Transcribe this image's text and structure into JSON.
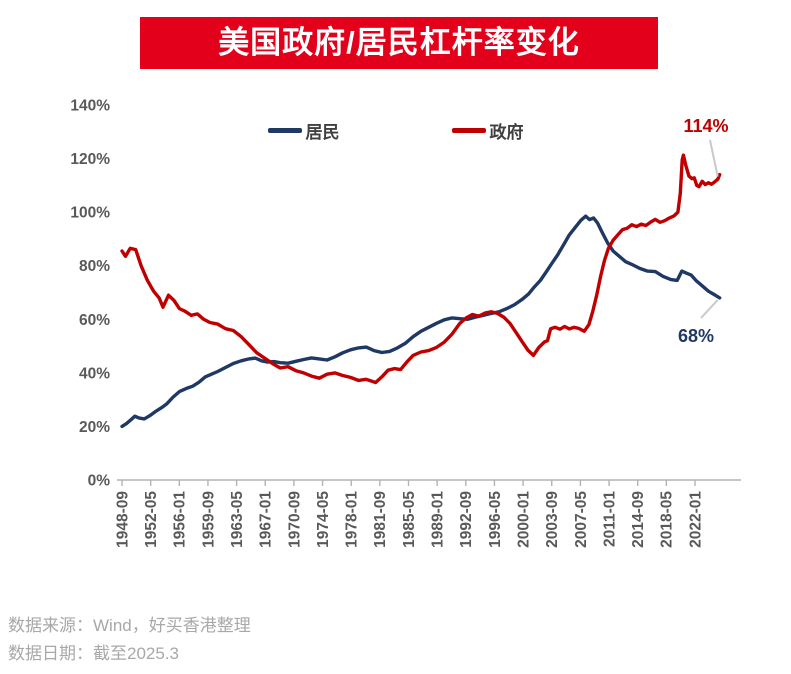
{
  "title": {
    "text": "美国政府/居民杠杆率变化"
  },
  "footer": {
    "source": "数据来源：Wind，好买香港整理",
    "date": "数据日期：截至2025.3"
  },
  "chart_data": {
    "type": "line",
    "title": "美国政府/居民杠杆率变化",
    "xlabel": "",
    "ylabel": "",
    "ylim": [
      0,
      140
    ],
    "y_ticks": [
      0,
      20,
      40,
      60,
      80,
      100,
      120,
      140
    ],
    "y_tick_suffix": "%",
    "grid": false,
    "legend_position": "top",
    "x_range_years": [
      1948.75,
      2025.25
    ],
    "x_tick_interval_months": 44,
    "x_tick_labels": [
      "1948-09",
      "1952-05",
      "1956-01",
      "1959-09",
      "1963-05",
      "1967-01",
      "1970-09",
      "1974-05",
      "1978-01",
      "1981-09",
      "1985-05",
      "1989-01",
      "1992-09",
      "1996-05",
      "2000-01",
      "2003-09",
      "2007-05",
      "2011-01",
      "2014-09",
      "2018-05",
      "2022-01"
    ],
    "series": [
      {
        "key": "household",
        "name": "居民",
        "color": "#1f3864",
        "end_label": "68%",
        "points": [
          [
            1948.75,
            20
          ],
          [
            1949.3,
            21
          ],
          [
            1949.9,
            22.5
          ],
          [
            1950.4,
            23.8
          ],
          [
            1950.9,
            23.2
          ],
          [
            1951.6,
            22.8
          ],
          [
            1952.3,
            24
          ],
          [
            1953.0,
            25.5
          ],
          [
            1953.8,
            27
          ],
          [
            1954.5,
            28.5
          ],
          [
            1955.3,
            31
          ],
          [
            1956.1,
            33
          ],
          [
            1957.0,
            34.2
          ],
          [
            1957.8,
            35
          ],
          [
            1958.6,
            36.5
          ],
          [
            1959.4,
            38.5
          ],
          [
            1960.2,
            39.5
          ],
          [
            1961.0,
            40.5
          ],
          [
            1962.0,
            42
          ],
          [
            1963.0,
            43.5
          ],
          [
            1964.0,
            44.5
          ],
          [
            1965.0,
            45.2
          ],
          [
            1965.8,
            45.5
          ],
          [
            1966.6,
            44.5
          ],
          [
            1967.4,
            44
          ],
          [
            1968.2,
            44.2
          ],
          [
            1969.0,
            43.8
          ],
          [
            1970.0,
            43.6
          ],
          [
            1971.0,
            44.3
          ],
          [
            1972.0,
            45
          ],
          [
            1973.0,
            45.6
          ],
          [
            1974.0,
            45.2
          ],
          [
            1975.0,
            44.8
          ],
          [
            1976.0,
            46
          ],
          [
            1977.0,
            47.5
          ],
          [
            1978.0,
            48.6
          ],
          [
            1979.0,
            49.3
          ],
          [
            1980.0,
            49.6
          ],
          [
            1981.0,
            48.3
          ],
          [
            1982.0,
            47.6
          ],
          [
            1983.0,
            48
          ],
          [
            1984.0,
            49.3
          ],
          [
            1985.0,
            51
          ],
          [
            1986.0,
            53.5
          ],
          [
            1987.0,
            55.5
          ],
          [
            1988.0,
            57
          ],
          [
            1989.0,
            58.5
          ],
          [
            1990.0,
            59.8
          ],
          [
            1991.0,
            60.5
          ],
          [
            1992.0,
            60.2
          ],
          [
            1993.0,
            60
          ],
          [
            1994.0,
            60.8
          ],
          [
            1995.0,
            61.5
          ],
          [
            1996.0,
            62.2
          ],
          [
            1997.0,
            62.8
          ],
          [
            1998.0,
            64
          ],
          [
            1999.0,
            65.5
          ],
          [
            2000.0,
            67.5
          ],
          [
            2000.8,
            69.5
          ],
          [
            2001.5,
            72
          ],
          [
            2002.3,
            74.5
          ],
          [
            2003.0,
            77.5
          ],
          [
            2003.8,
            81
          ],
          [
            2004.5,
            84
          ],
          [
            2005.3,
            88
          ],
          [
            2006.0,
            91.5
          ],
          [
            2006.8,
            94.5
          ],
          [
            2007.5,
            97
          ],
          [
            2008.1,
            98.5
          ],
          [
            2008.6,
            97.2
          ],
          [
            2009.1,
            97.8
          ],
          [
            2009.6,
            96
          ],
          [
            2010.2,
            92.5
          ],
          [
            2010.9,
            88.5
          ],
          [
            2011.6,
            85.5
          ],
          [
            2012.4,
            83.5
          ],
          [
            2013.2,
            81.5
          ],
          [
            2014.0,
            80.5
          ],
          [
            2015.0,
            79
          ],
          [
            2016.0,
            78
          ],
          [
            2017.0,
            77.8
          ],
          [
            2018.0,
            76
          ],
          [
            2019.0,
            74.8
          ],
          [
            2019.8,
            74.5
          ],
          [
            2020.4,
            78
          ],
          [
            2021.0,
            77.2
          ],
          [
            2021.6,
            76.5
          ],
          [
            2022.2,
            74.5
          ],
          [
            2023.0,
            72.5
          ],
          [
            2023.8,
            70.5
          ],
          [
            2024.5,
            69.3
          ],
          [
            2025.25,
            68
          ]
        ]
      },
      {
        "key": "government",
        "name": "政府",
        "color": "#c00000",
        "end_label": "114%",
        "points": [
          [
            1948.75,
            85.5
          ],
          [
            1949.2,
            83.5
          ],
          [
            1949.8,
            86.5
          ],
          [
            1950.5,
            86
          ],
          [
            1951.2,
            80
          ],
          [
            1952.0,
            74.5
          ],
          [
            1952.8,
            70.5
          ],
          [
            1953.5,
            68
          ],
          [
            1954.0,
            64.5
          ],
          [
            1954.7,
            69
          ],
          [
            1955.4,
            67
          ],
          [
            1956.1,
            64
          ],
          [
            1956.8,
            63
          ],
          [
            1957.6,
            61.5
          ],
          [
            1958.4,
            62
          ],
          [
            1959.2,
            60
          ],
          [
            1960.0,
            58.8
          ],
          [
            1961.0,
            58.2
          ],
          [
            1962.0,
            56.5
          ],
          [
            1963.0,
            55.8
          ],
          [
            1964.0,
            53.5
          ],
          [
            1965.0,
            50.5
          ],
          [
            1966.0,
            47.5
          ],
          [
            1967.0,
            45.5
          ],
          [
            1968.0,
            43.5
          ],
          [
            1969.0,
            41.8
          ],
          [
            1970.0,
            42.3
          ],
          [
            1971.0,
            40.8
          ],
          [
            1972.0,
            40
          ],
          [
            1973.0,
            38.8
          ],
          [
            1974.0,
            38
          ],
          [
            1975.0,
            39.5
          ],
          [
            1976.0,
            40
          ],
          [
            1977.0,
            39
          ],
          [
            1978.0,
            38.3
          ],
          [
            1979.0,
            37.2
          ],
          [
            1980.0,
            37.6
          ],
          [
            1981.2,
            36.4
          ],
          [
            1982.0,
            38.5
          ],
          [
            1982.8,
            41
          ],
          [
            1983.6,
            41.6
          ],
          [
            1984.4,
            41.2
          ],
          [
            1985.2,
            44
          ],
          [
            1986.0,
            46.5
          ],
          [
            1987.0,
            47.8
          ],
          [
            1988.0,
            48.3
          ],
          [
            1989.0,
            49.5
          ],
          [
            1990.0,
            51.5
          ],
          [
            1991.0,
            54.5
          ],
          [
            1992.0,
            58.5
          ],
          [
            1992.8,
            60.5
          ],
          [
            1993.6,
            61.8
          ],
          [
            1994.4,
            61.2
          ],
          [
            1995.2,
            62.3
          ],
          [
            1996.0,
            62.8
          ],
          [
            1996.8,
            62.2
          ],
          [
            1997.6,
            60.8
          ],
          [
            1998.4,
            58.5
          ],
          [
            1999.2,
            55
          ],
          [
            2000.0,
            51.5
          ],
          [
            2000.7,
            48.5
          ],
          [
            2001.4,
            46.5
          ],
          [
            2002.1,
            49.5
          ],
          [
            2002.8,
            51.5
          ],
          [
            2003.2,
            52
          ],
          [
            2003.6,
            56.5
          ],
          [
            2004.2,
            57
          ],
          [
            2004.8,
            56.3
          ],
          [
            2005.4,
            57.3
          ],
          [
            2006.0,
            56.4
          ],
          [
            2006.6,
            57
          ],
          [
            2007.2,
            56.6
          ],
          [
            2007.9,
            55.5
          ],
          [
            2008.5,
            58
          ],
          [
            2009.0,
            63
          ],
          [
            2009.5,
            69
          ],
          [
            2010.0,
            76
          ],
          [
            2010.5,
            82
          ],
          [
            2011.0,
            86.5
          ],
          [
            2011.6,
            89.5
          ],
          [
            2012.2,
            91.5
          ],
          [
            2012.8,
            93.5
          ],
          [
            2013.4,
            94
          ],
          [
            2014.0,
            95.3
          ],
          [
            2014.6,
            94.6
          ],
          [
            2015.2,
            95.5
          ],
          [
            2015.8,
            95
          ],
          [
            2016.4,
            96.3
          ],
          [
            2017.0,
            97.3
          ],
          [
            2017.6,
            96.2
          ],
          [
            2018.2,
            96.8
          ],
          [
            2018.8,
            97.8
          ],
          [
            2019.4,
            98.6
          ],
          [
            2019.9,
            100
          ],
          [
            2020.2,
            107
          ],
          [
            2020.45,
            119.5
          ],
          [
            2020.6,
            121.3
          ],
          [
            2020.9,
            117.5
          ],
          [
            2021.3,
            113.5
          ],
          [
            2021.7,
            112.5
          ],
          [
            2022.0,
            112.8
          ],
          [
            2022.3,
            110
          ],
          [
            2022.6,
            109.5
          ],
          [
            2023.0,
            111.5
          ],
          [
            2023.4,
            110.3
          ],
          [
            2023.8,
            111
          ],
          [
            2024.2,
            110.4
          ],
          [
            2024.6,
            111.3
          ],
          [
            2025.0,
            112.3
          ],
          [
            2025.25,
            114
          ]
        ]
      }
    ],
    "annotations": [
      {
        "text": "114%",
        "color": "#c00000",
        "series_key": "government",
        "position": "end"
      },
      {
        "text": "68%",
        "color": "#1f3864",
        "series_key": "household",
        "position": "end"
      }
    ],
    "colors": {
      "axis": "#b3b3b3",
      "tick_text": "#595959",
      "leader_line": "#c9c9c9"
    }
  }
}
